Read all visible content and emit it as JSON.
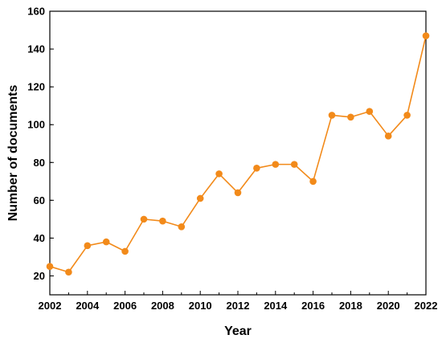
{
  "chart_data": {
    "type": "line",
    "title": "",
    "xlabel": "Year",
    "ylabel": "Number of documents",
    "x": [
      2002,
      2003,
      2004,
      2005,
      2006,
      2007,
      2008,
      2009,
      2010,
      2011,
      2012,
      2013,
      2014,
      2015,
      2016,
      2017,
      2018,
      2019,
      2020,
      2021,
      2022
    ],
    "series": [
      {
        "values": [
          25,
          22,
          36,
          38,
          33,
          50,
          49,
          46,
          61,
          74,
          64,
          77,
          79,
          79,
          70,
          105,
          104,
          107,
          94,
          105,
          147
        ]
      }
    ],
    "xlim": [
      2002,
      2022
    ],
    "ylim": [
      10,
      160
    ],
    "x_ticks": [
      "2002",
      "2004",
      "2006",
      "2008",
      "2010",
      "2012",
      "2014",
      "2016",
      "2018",
      "2020",
      "2022"
    ],
    "y_ticks": [
      "20",
      "40",
      "60",
      "80",
      "100",
      "120",
      "140",
      "160"
    ],
    "grid": false,
    "legend": "none",
    "colors": {
      "line": "#f28a1a",
      "marker": "#f28a1a",
      "axis": "#000000"
    }
  }
}
